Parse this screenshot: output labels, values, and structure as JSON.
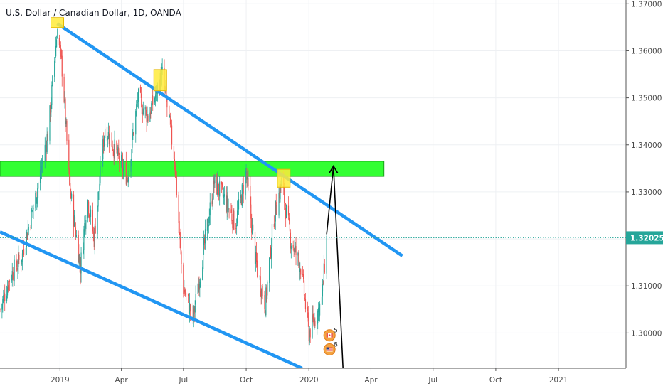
{
  "chart_data": {
    "type": "candlestick",
    "title": "U.S. Dollar / Canadian Dollar, 1D, OANDA",
    "ylim": [
      1.2925,
      1.3708
    ],
    "y_ticks": [
      1.3,
      1.31,
      1.32,
      1.33,
      1.34,
      1.35,
      1.36,
      1.37
    ],
    "y_tick_labels": [
      "1.30000",
      "1.31000",
      "1.32000",
      "1.33000",
      "1.34000",
      "1.35000",
      "1.36000",
      "1.37000"
    ],
    "x_range": [
      "2018-10-05",
      "2021-04-10"
    ],
    "x_ticks": [
      "2019-01-01",
      "2019-04-01",
      "2019-07-01",
      "2019-10-01",
      "2020-01-01",
      "2020-04-01",
      "2020-07-01",
      "2020-10-01",
      "2021-01-01"
    ],
    "x_tick_labels": [
      "2019",
      "Apr",
      "Jul",
      "Oct",
      "2020",
      "Apr",
      "Jul",
      "Oct",
      "2021"
    ],
    "last_price": 1.32025,
    "last_price_label": "1.32025",
    "colors": {
      "up": "#26a69a",
      "down": "#ef5350",
      "channel": "#2196f3",
      "zone": "#33ff33",
      "marker": "#ffeb3b",
      "price_line": "#26a69a"
    },
    "price_path": [
      [
        "2018-10-05",
        1.305
      ],
      [
        "2018-10-20",
        1.312
      ],
      [
        "2018-11-05",
        1.316
      ],
      [
        "2018-11-25",
        1.328
      ],
      [
        "2018-12-15",
        1.343
      ],
      [
        "2018-12-28",
        1.3645
      ],
      [
        "2019-01-05",
        1.355
      ],
      [
        "2019-01-15",
        1.331
      ],
      [
        "2019-01-31",
        1.314
      ],
      [
        "2019-02-10",
        1.329
      ],
      [
        "2019-02-20",
        1.32
      ],
      [
        "2019-03-08",
        1.344
      ],
      [
        "2019-03-25",
        1.338
      ],
      [
        "2019-04-10",
        1.333
      ],
      [
        "2019-04-25",
        1.35
      ],
      [
        "2019-05-10",
        1.346
      ],
      [
        "2019-05-31",
        1.355
      ],
      [
        "2019-06-18",
        1.337
      ],
      [
        "2019-06-30",
        1.31
      ],
      [
        "2019-07-15",
        1.303
      ],
      [
        "2019-07-31",
        1.318
      ],
      [
        "2019-08-15",
        1.332
      ],
      [
        "2019-09-01",
        1.328
      ],
      [
        "2019-09-15",
        1.323
      ],
      [
        "2019-10-01",
        1.334
      ],
      [
        "2019-10-15",
        1.315
      ],
      [
        "2019-10-29",
        1.306
      ],
      [
        "2019-11-10",
        1.324
      ],
      [
        "2019-11-22",
        1.332
      ],
      [
        "2019-12-05",
        1.32
      ],
      [
        "2019-12-20",
        1.314
      ],
      [
        "2020-01-01",
        1.3
      ],
      [
        "2020-01-10",
        1.303
      ],
      [
        "2020-01-20",
        1.307
      ],
      [
        "2020-01-27",
        1.32
      ]
    ],
    "channel_upper": [
      [
        "2018-12-28",
        1.3658
      ],
      [
        "2020-05-17",
        1.3164
      ]
    ],
    "channel_lower": [
      [
        "2018-10-05",
        1.3215
      ],
      [
        "2019-12-22",
        1.2925
      ]
    ],
    "resistance_zone": {
      "x0": "2018-10-05",
      "x1": "2020-04-20",
      "y0": 1.3333,
      "y1": 1.3365
    },
    "markers": [
      {
        "x": "2018-12-28",
        "y_low": 1.365,
        "y_high": 1.367
      },
      {
        "x": "2019-05-28",
        "y_low": 1.3515,
        "y_high": 1.356
      },
      {
        "x": "2019-11-25",
        "y_low": 1.331,
        "y_high": 1.3348
      }
    ],
    "projection_arrow": [
      [
        "2020-02-20",
        1.2925
      ],
      [
        "2020-02-06",
        1.3355
      ],
      [
        "2020-01-27",
        1.321
      ]
    ],
    "events": [
      {
        "x": "2020-01-27",
        "y": 1.2995,
        "count": "5",
        "flag": "canada"
      },
      {
        "x": "2020-01-27",
        "y": 1.2965,
        "count": "8",
        "flag": "usa"
      }
    ]
  }
}
